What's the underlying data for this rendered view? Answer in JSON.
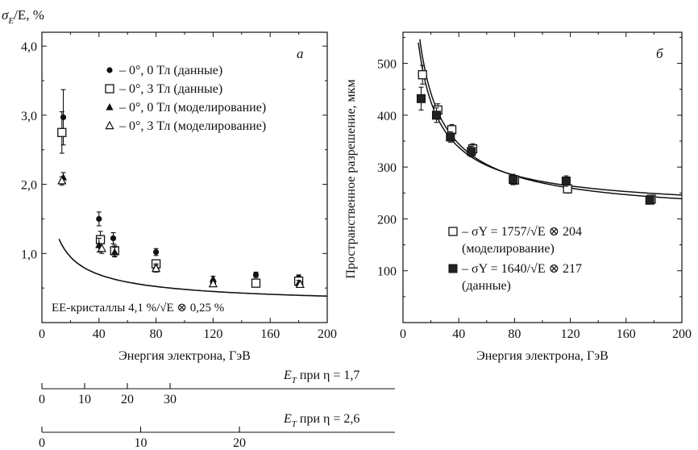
{
  "chart_data": [
    {
      "type": "scatter",
      "panel_label": "а",
      "ylabel": "σ",
      "ylabel_sub": "E",
      "ylabel_rest": "/E, %",
      "xlabel": "Энергия электрона, ГэВ",
      "xlim": [
        0,
        200
      ],
      "ylim": [
        0,
        4.2
      ],
      "xticks": [
        "0",
        "40",
        "80",
        "120",
        "160",
        "200"
      ],
      "yticks": [
        "1,0",
        "2,0",
        "3,0",
        "4,0"
      ],
      "legend": [
        {
          "marker": "circle-filled",
          "text": "– 0°, 0 Тл (данные)"
        },
        {
          "marker": "square-open",
          "text": "– 0°, 3 Тл (данные)"
        },
        {
          "marker": "triangle-filled",
          "text": "– 0°, 0 Тл (моделирование)"
        },
        {
          "marker": "triangle-open",
          "text": "– 0°, 3 Тл (моделирование)"
        }
      ],
      "fit_label": "EE-кристаллы 4,1 %/√E ⊗ 0,25 %",
      "fit_curve": {
        "a": 4.1,
        "c": 0.25,
        "xmin": 12,
        "xmax": 200
      },
      "series": [
        {
          "marker": "circle-filled",
          "points": [
            [
              15,
              2.97,
              0.4
            ],
            [
              40,
              1.5,
              0.1
            ],
            [
              50,
              1.22,
              0.08
            ],
            [
              80,
              1.02,
              0.05
            ],
            [
              120,
              0.57,
              0.05
            ],
            [
              150,
              0.69,
              0.04
            ],
            [
              180,
              0.65,
              0.04
            ]
          ]
        },
        {
          "marker": "square-open",
          "points": [
            [
              14,
              2.75,
              0.3
            ],
            [
              41,
              1.2,
              0.12
            ],
            [
              51,
              1.04,
              0.08
            ],
            [
              80,
              0.85,
              0.06
            ],
            [
              150,
              0.57,
              0.04
            ],
            [
              180,
              0.6,
              0.05
            ]
          ]
        },
        {
          "marker": "triangle-filled",
          "points": [
            [
              15,
              2.1,
              0.07
            ],
            [
              40,
              1.12,
              0.1
            ],
            [
              51,
              1.02,
              0.07
            ],
            [
              80,
              0.8,
              0.05
            ],
            [
              120,
              0.63,
              0.04
            ],
            [
              180,
              0.57,
              0.04
            ]
          ]
        },
        {
          "marker": "triangle-open",
          "points": [
            [
              14,
              2.05,
              0.06
            ],
            [
              42,
              1.07,
              0.07
            ],
            [
              80,
              0.78,
              0.05
            ],
            [
              120,
              0.56,
              0.04
            ],
            [
              181,
              0.55,
              0.04
            ]
          ]
        }
      ]
    },
    {
      "type": "scatter",
      "panel_label": "б",
      "ylabel": "Пространственное разрешение, мкм",
      "xlabel": "Энергия электрона, ГэВ",
      "xlim": [
        0,
        200
      ],
      "ylim": [
        0,
        560
      ],
      "xticks": [
        "0",
        "40",
        "80",
        "120",
        "160",
        "200"
      ],
      "yticks": [
        "100",
        "200",
        "300",
        "400",
        "500"
      ],
      "legend": [
        {
          "marker": "square-open",
          "formula": "– σY = 1757/√E ⊗ 204",
          "note": "(моделирование)"
        },
        {
          "marker": "square-filled",
          "formula": "– σY = 1640/√E ⊗ 217",
          "note": "(данные)"
        }
      ],
      "curves": [
        {
          "a": 1757,
          "c": 204,
          "xmin": 10,
          "xmax": 200
        },
        {
          "a": 1640,
          "c": 217,
          "xmin": 10,
          "xmax": 200
        }
      ],
      "series": [
        {
          "marker": "square-open",
          "points": [
            [
              14,
              478,
              18
            ],
            [
              25,
              410,
              12
            ],
            [
              35,
              372,
              10
            ],
            [
              50,
              335,
              10
            ],
            [
              80,
              275,
              8
            ],
            [
              118,
              258,
              8
            ],
            [
              178,
              238,
              6
            ]
          ]
        },
        {
          "marker": "square-filled",
          "points": [
            [
              13,
              432,
              22
            ],
            [
              24,
              400,
              14
            ],
            [
              34,
              358,
              10
            ],
            [
              49,
              330,
              10
            ],
            [
              79,
              276,
              10
            ],
            [
              117,
              273,
              10
            ],
            [
              177,
              236,
              6
            ]
          ]
        }
      ]
    }
  ],
  "secondary_axes": [
    {
      "label": "E",
      "label_sub": "T",
      "label_rest": " при η = 1,7",
      "ticks": [
        "0",
        "10",
        "20",
        "30"
      ],
      "values": [
        0,
        10,
        20,
        30
      ],
      "scale": 2.89
    },
    {
      "label": "E",
      "label_sub": "T",
      "label_rest": " при η = 2,6",
      "ticks": [
        "0",
        "10",
        "20"
      ],
      "values": [
        0,
        10,
        20
      ],
      "scale": 6.74
    }
  ]
}
